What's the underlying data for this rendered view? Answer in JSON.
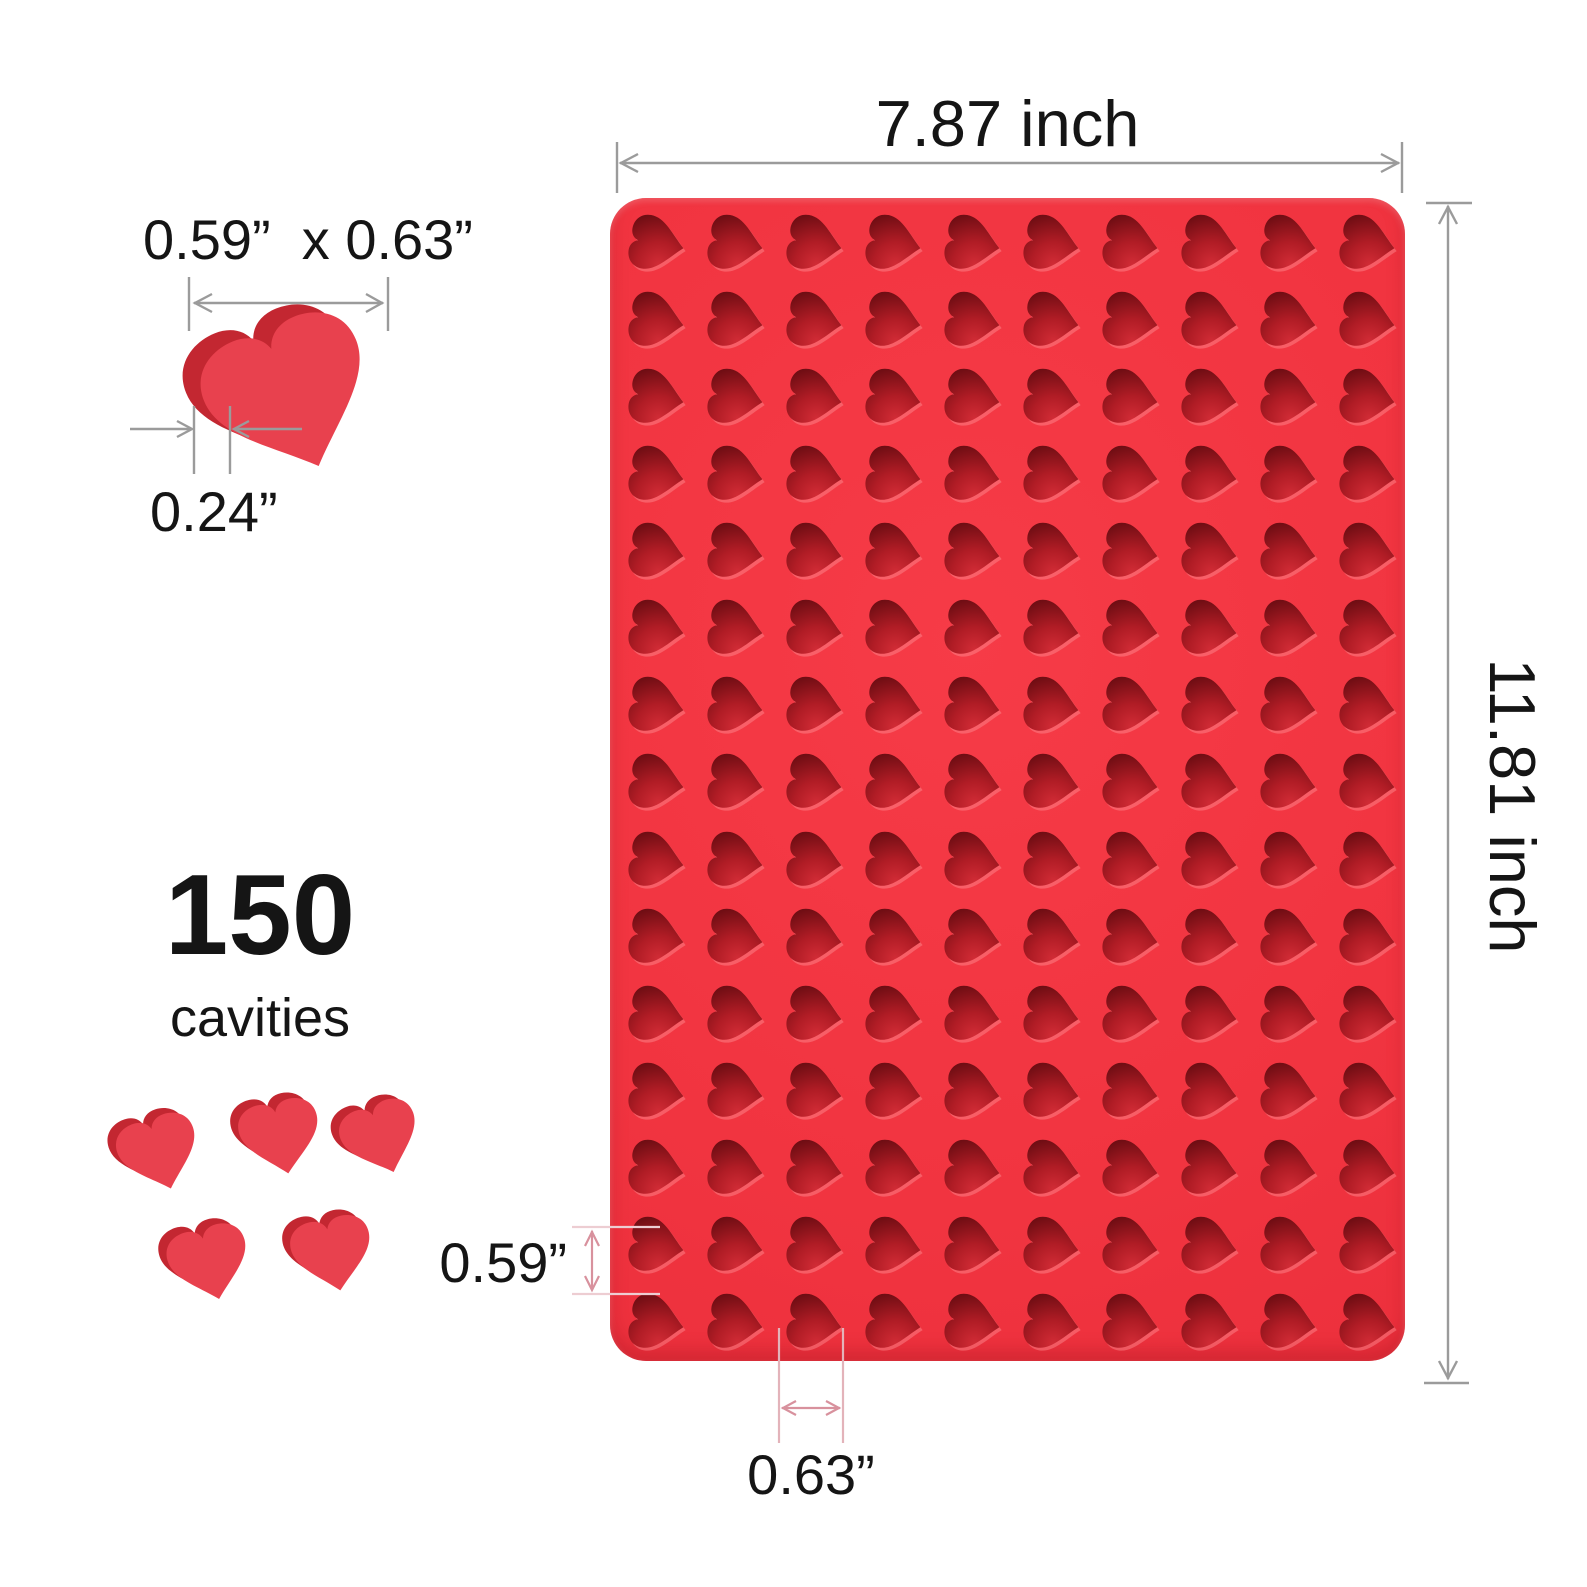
{
  "annotations": {
    "mold_width": "7.87 inch",
    "mold_height": "11.81 inch",
    "cavity_size": "0.59”  x 0.63”",
    "cavity_depth": "0.24”",
    "cavity_count": "150",
    "cavity_count_caption": "cavities",
    "cavity_pitch_height": "0.59”",
    "cavity_pitch_width": "0.63”"
  },
  "mold": {
    "grid_rows": 15,
    "grid_cols": 10,
    "total_cavities": 150,
    "cavity_shape": "heart"
  },
  "icons": {
    "heart_cavity": "heart-cavity",
    "heart_3d": "heart-3d"
  },
  "colors": {
    "background": "#ffffff",
    "mold_red": "#f13440",
    "cavity_mid": "#c4242d",
    "cavity_shadow": "#6e0d13",
    "heart_front": "#e8414e",
    "heart_side": "#c32731",
    "dimension_gray": "#9b9b9b",
    "dimension_pink": "#d8919d",
    "dimension_pink_tick": "#edcdd2",
    "text_black": "#151515"
  }
}
